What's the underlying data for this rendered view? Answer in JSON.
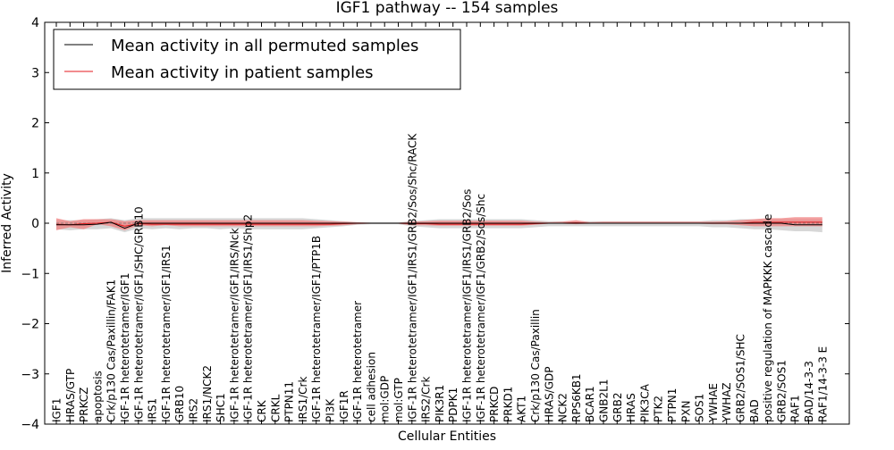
{
  "chart_data": {
    "type": "line",
    "title": "IGF1 pathway -- 154 samples",
    "xlabel": "Cellular Entities",
    "ylabel": "Inferred Activity",
    "ylim": [
      -4,
      4
    ],
    "yticks": [
      -4,
      -3,
      -2,
      -1,
      0,
      1,
      2,
      3,
      4
    ],
    "ytick_labels": [
      "−4",
      "−3",
      "−2",
      "−1",
      "0",
      "1",
      "2",
      "3",
      "4"
    ],
    "grid": false,
    "legend": {
      "location": "top-left",
      "entries": [
        {
          "label": "Mean activity in all permuted samples",
          "color": "#000000"
        },
        {
          "label": "Mean activity in patient samples",
          "color": "#e41a1c"
        }
      ]
    },
    "categories": [
      "IGF1",
      "HRAS/GTP",
      "PRKCZ",
      "apoptosis",
      "Crk/p130 Cas/Paxillin/FAK1",
      "IGF-1R heterotetramer/IGF1",
      "IGF-1R heterotetramer/IGF1/SHC/GRB10",
      "IRS1",
      "IGF-1R heterotetramer/IGF1/IRS1",
      "GRB10",
      "IRS2",
      "IRS1/NCK2",
      "SHC1",
      "IGF-1R heterotetramer/IGF1/IRS/Nck",
      "IGF-1R heterotetramer/IGF1/IRS1/Shp2",
      "CRK",
      "CRKL",
      "PTPN11",
      "IRS1/Crk",
      "IGF-1R heterotetramer/IGF1/PTP1B",
      "PI3K",
      "IGF1R",
      "IGF-1R heterotetramer",
      "cell adhesion",
      "mol:GDP",
      "mol:GTP",
      "IGF-1R heterotetramer/IGF1/IRS1/GRB2/Sos/Shc/RACK",
      "IRS2/Crk",
      "PIK3R1",
      "PDPK1",
      "IGF-1R heterotetramer/IGF1/IRS1/GRB2/Sos",
      "IGF-1R heterotetramer/IGF1/GRB2/Sos/Shc",
      "PRKCD",
      "PRKD1",
      "AKT1",
      "Crk/p130 Cas/Paxillin",
      "HRAS/GDP",
      "NCK2",
      "RPS6KB1",
      "BCAR1",
      "GNB2L1",
      "GRB2",
      "HRAS",
      "PIK3CA",
      "PTK2",
      "PTPN1",
      "PXN",
      "SOS1",
      "YWHAE",
      "YWHAZ",
      "GRB2/SOS1/SHC",
      "BAD",
      "positive regulation of MAPKKK cascade",
      "GRB2/SOS1",
      "RAF1",
      "BAD/14-3-3",
      "RAF1/14-3-3 E"
    ],
    "series": [
      {
        "name": "Mean activity in all permuted samples",
        "color": "#000000",
        "values": [
          -0.03,
          -0.03,
          -0.03,
          -0.02,
          0.02,
          -0.1,
          0.0,
          0.0,
          0.0,
          0.0,
          0.0,
          0.0,
          0.0,
          0.0,
          0.0,
          0.0,
          0.0,
          0.0,
          0.0,
          0.0,
          0.0,
          0.0,
          0.0,
          0.0,
          0.0,
          0.0,
          0.0,
          0.0,
          0.0,
          0.0,
          0.0,
          0.0,
          0.0,
          0.0,
          0.0,
          0.0,
          0.0,
          0.0,
          0.0,
          0.0,
          0.0,
          0.0,
          0.0,
          0.0,
          0.0,
          0.0,
          0.0,
          0.0,
          0.0,
          0.0,
          0.0,
          0.0,
          0.0,
          0.0,
          -0.03,
          -0.03,
          -0.03
        ],
        "band_lower": [
          -0.12,
          -0.14,
          -0.12,
          -0.12,
          -0.1,
          -0.18,
          -0.1,
          -0.12,
          -0.1,
          -0.12,
          -0.1,
          -0.1,
          -0.12,
          -0.1,
          -0.12,
          -0.12,
          -0.12,
          -0.12,
          -0.12,
          -0.1,
          -0.08,
          -0.06,
          -0.03,
          -0.02,
          -0.02,
          -0.02,
          -0.06,
          -0.08,
          -0.1,
          -0.1,
          -0.1,
          -0.1,
          -0.1,
          -0.1,
          -0.1,
          -0.08,
          -0.06,
          -0.06,
          -0.06,
          -0.06,
          -0.06,
          -0.06,
          -0.06,
          -0.06,
          -0.06,
          -0.06,
          -0.06,
          -0.06,
          -0.08,
          -0.08,
          -0.1,
          -0.12,
          -0.12,
          -0.14,
          -0.16,
          -0.16,
          -0.18
        ],
        "band_upper": [
          0.06,
          0.06,
          0.06,
          0.08,
          0.1,
          0.06,
          0.1,
          0.1,
          0.1,
          0.1,
          0.1,
          0.1,
          0.1,
          0.1,
          0.1,
          0.1,
          0.1,
          0.1,
          0.1,
          0.08,
          0.06,
          0.04,
          0.02,
          0.02,
          0.02,
          0.02,
          0.04,
          0.06,
          0.08,
          0.08,
          0.08,
          0.08,
          0.08,
          0.08,
          0.08,
          0.06,
          0.04,
          0.04,
          0.04,
          0.04,
          0.04,
          0.04,
          0.04,
          0.04,
          0.04,
          0.04,
          0.04,
          0.04,
          0.06,
          0.06,
          0.08,
          0.08,
          0.08,
          0.08,
          0.08,
          0.08,
          0.08
        ]
      },
      {
        "name": "Mean activity in patient samples",
        "color": "#e41a1c",
        "values": [
          -0.02,
          -0.03,
          -0.01,
          0.0,
          0.02,
          -0.06,
          -0.01,
          -0.02,
          -0.02,
          -0.02,
          -0.02,
          -0.02,
          -0.02,
          -0.02,
          -0.02,
          -0.02,
          -0.02,
          -0.02,
          -0.02,
          -0.02,
          -0.02,
          -0.01,
          0.0,
          0.0,
          0.0,
          0.0,
          -0.01,
          -0.01,
          -0.02,
          -0.02,
          -0.02,
          -0.02,
          -0.02,
          -0.02,
          -0.02,
          -0.01,
          0.0,
          0.0,
          0.01,
          0.0,
          0.0,
          0.0,
          0.0,
          0.0,
          0.0,
          0.0,
          0.0,
          0.0,
          0.0,
          0.0,
          0.0,
          0.02,
          0.02,
          0.02,
          0.02,
          0.02,
          0.02
        ],
        "band_lower": [
          -0.14,
          -0.08,
          -0.12,
          -0.02,
          -0.06,
          -0.14,
          -0.04,
          -0.06,
          -0.04,
          -0.06,
          -0.06,
          -0.06,
          -0.06,
          -0.06,
          -0.06,
          -0.06,
          -0.06,
          -0.06,
          -0.06,
          -0.06,
          -0.05,
          -0.04,
          -0.02,
          -0.01,
          -0.01,
          -0.01,
          -0.04,
          -0.04,
          -0.05,
          -0.05,
          -0.05,
          -0.05,
          -0.05,
          -0.05,
          -0.05,
          -0.03,
          -0.01,
          -0.01,
          -0.02,
          -0.01,
          -0.01,
          -0.01,
          -0.01,
          -0.01,
          -0.01,
          -0.01,
          -0.01,
          -0.01,
          -0.02,
          -0.02,
          -0.04,
          -0.06,
          -0.06,
          -0.06,
          -0.06,
          -0.06,
          -0.06
        ],
        "band_upper": [
          0.1,
          0.04,
          0.08,
          0.08,
          0.08,
          0.04,
          0.06,
          0.06,
          0.06,
          0.06,
          0.06,
          0.06,
          0.06,
          0.06,
          0.06,
          0.06,
          0.06,
          0.06,
          0.06,
          0.05,
          0.04,
          0.03,
          0.02,
          0.01,
          0.01,
          0.01,
          0.03,
          0.04,
          0.05,
          0.05,
          0.05,
          0.05,
          0.05,
          0.05,
          0.05,
          0.03,
          0.02,
          0.03,
          0.06,
          0.02,
          0.03,
          0.03,
          0.03,
          0.03,
          0.03,
          0.03,
          0.03,
          0.03,
          0.03,
          0.04,
          0.06,
          0.08,
          0.1,
          0.1,
          0.12,
          0.12,
          0.12
        ]
      }
    ]
  }
}
